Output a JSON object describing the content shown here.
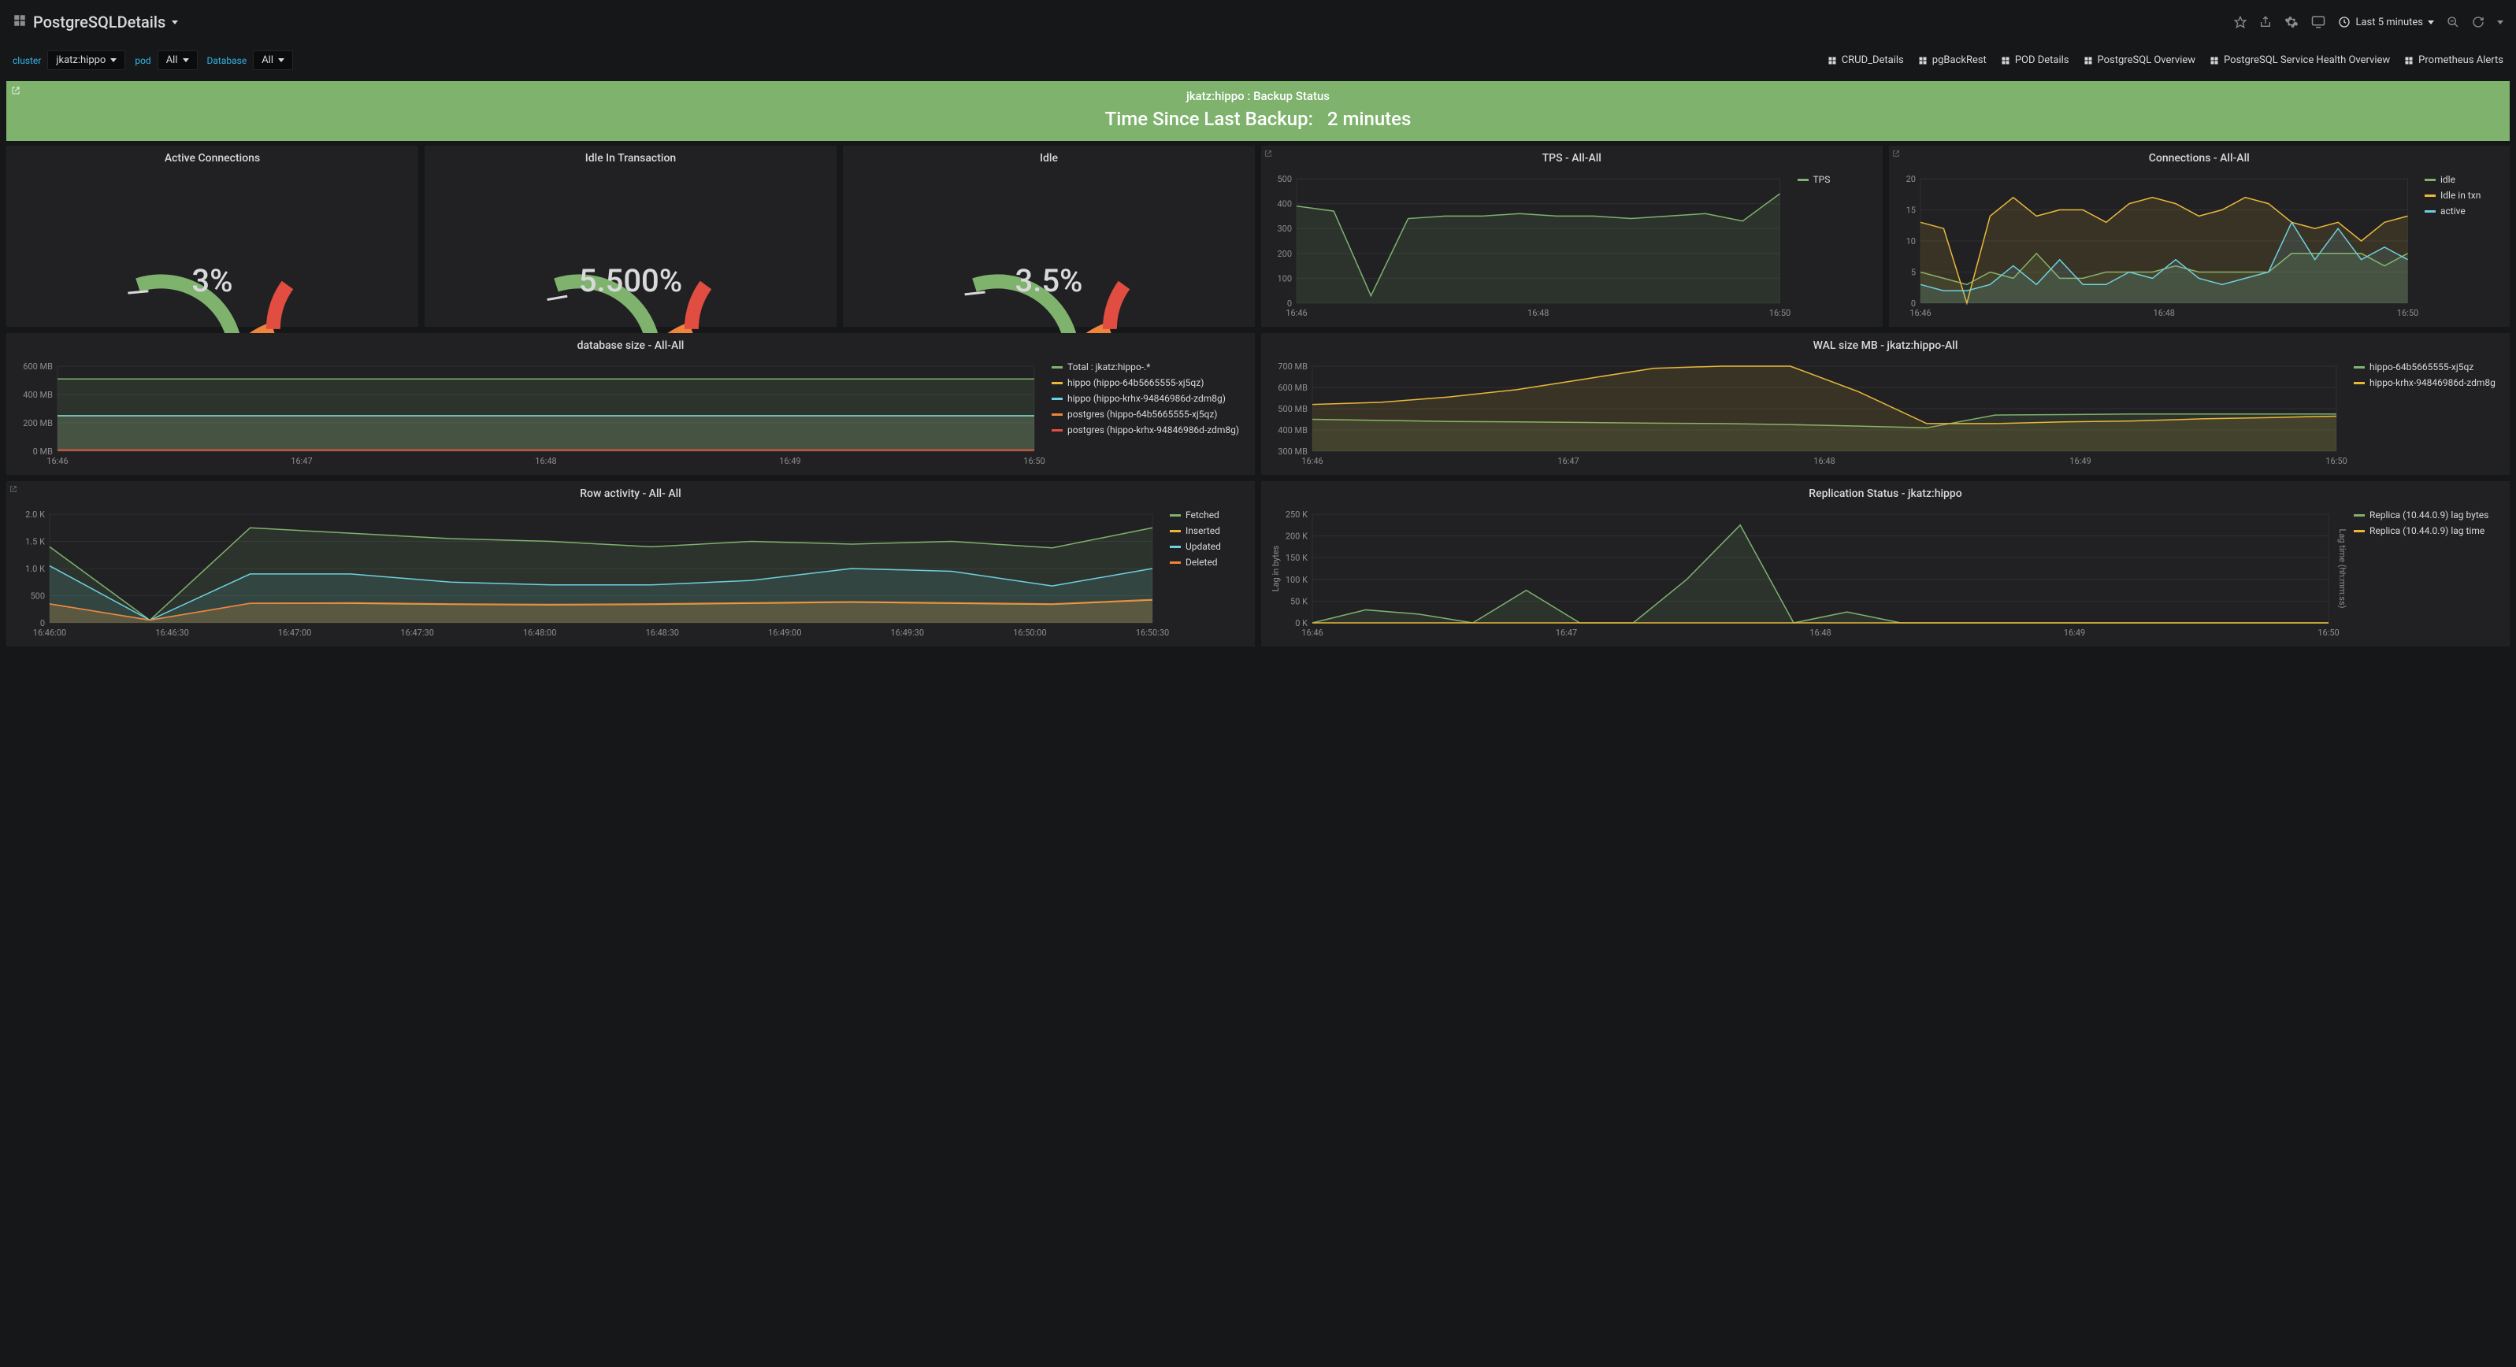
{
  "header": {
    "title": "PostgreSQLDetails",
    "time_range": "Last 5 minutes"
  },
  "variables": {
    "cluster": {
      "label": "cluster",
      "value": "jkatz:hippo"
    },
    "pod": {
      "label": "pod",
      "value": "All"
    },
    "database": {
      "label": "Database",
      "value": "All"
    }
  },
  "dash_links": [
    "CRUD_Details",
    "pgBackRest",
    "POD Details",
    "PostgreSQL Overview",
    "PostgreSQL Service Health Overview",
    "Prometheus Alerts"
  ],
  "banner": {
    "title": "jkatz:hippo : Backup Status",
    "label": "Time Since Last Backup:",
    "value": "2 minutes"
  },
  "gauges": [
    {
      "title": "Active Connections",
      "value": "3%",
      "fraction": 0.03
    },
    {
      "title": "Idle In Transaction",
      "value": "5.500%",
      "fraction": 0.055
    },
    {
      "title": "Idle",
      "value": "3.5%",
      "fraction": 0.035
    }
  ],
  "colors": {
    "green": "#7eb26d",
    "yellow": "#eab839",
    "cyan": "#6ed0e0",
    "orange": "#ef843c",
    "red": "#e24d42",
    "bg_panel": "#212124",
    "grid": "#2f2f32",
    "axis": "#8e8e8e"
  },
  "tps": {
    "title": "TPS - All-All",
    "ylim": [
      0,
      500
    ],
    "ystep": 100,
    "xlabels": [
      "16:46",
      "16:48",
      "16:50"
    ],
    "series": [
      {
        "name": "TPS",
        "color": "#7eb26d",
        "points": [
          390,
          370,
          30,
          340,
          350,
          350,
          360,
          350,
          350,
          340,
          350,
          360,
          330,
          440
        ]
      }
    ]
  },
  "connections": {
    "title": "Connections - All-All",
    "ylim": [
      0,
      20
    ],
    "ystep": 5,
    "xlabels": [
      "16:46",
      "16:48",
      "16:50"
    ],
    "series": [
      {
        "name": "idle",
        "color": "#7eb26d",
        "points": [
          5,
          4,
          3,
          5,
          4,
          8,
          4,
          4,
          5,
          5,
          5,
          6,
          5,
          5,
          5,
          5,
          8,
          8,
          8,
          8,
          6,
          8
        ]
      },
      {
        "name": "Idle in txn",
        "color": "#eab839",
        "points": [
          13,
          12,
          0,
          14,
          17,
          14,
          15,
          15,
          13,
          16,
          17,
          16,
          14,
          15,
          17,
          16,
          13,
          12,
          13,
          10,
          13,
          14
        ]
      },
      {
        "name": "active",
        "color": "#6ed0e0",
        "points": [
          3,
          2,
          2,
          3,
          6,
          3,
          7,
          3,
          3,
          5,
          4,
          7,
          4,
          3,
          4,
          5,
          13,
          7,
          12,
          7,
          9,
          7
        ]
      }
    ]
  },
  "dbsize": {
    "title": "database size - All-All",
    "ylim": [
      0,
      600
    ],
    "ystep": 200,
    "yunit": " MB",
    "xlabels": [
      "16:46",
      "16:47",
      "16:48",
      "16:49",
      "16:50"
    ],
    "series": [
      {
        "name": "Total : jkatz:hippo-.*",
        "color": "#7eb26d",
        "points": [
          510,
          510,
          510,
          510,
          510,
          510,
          510,
          510,
          510,
          510
        ]
      },
      {
        "name": "hippo (hippo-64b5665555-xj5qz)",
        "color": "#eab839",
        "points": [
          250,
          250,
          250,
          250,
          250,
          250,
          250,
          250,
          250,
          250
        ]
      },
      {
        "name": "hippo (hippo-krhx-94846986d-zdm8g)",
        "color": "#6ed0e0",
        "points": [
          250,
          250,
          250,
          250,
          250,
          250,
          250,
          250,
          250,
          250
        ]
      },
      {
        "name": "postgres (hippo-64b5665555-xj5qz)",
        "color": "#ef843c",
        "points": [
          8,
          8,
          8,
          8,
          8,
          8,
          8,
          8,
          8,
          8
        ]
      },
      {
        "name": "postgres (hippo-krhx-94846986d-zdm8g)",
        "color": "#e24d42",
        "points": [
          8,
          8,
          8,
          8,
          8,
          8,
          8,
          8,
          8,
          8
        ]
      }
    ]
  },
  "walsize": {
    "title": "WAL size MB - jkatz:hippo-All",
    "ylim": [
      300,
      700
    ],
    "ystep": 100,
    "yunit": " MB",
    "xlabels": [
      "16:46",
      "16:47",
      "16:48",
      "16:49",
      "16:50"
    ],
    "series": [
      {
        "name": "hippo-64b5665555-xj5qz",
        "color": "#7eb26d",
        "points": [
          450,
          445,
          440,
          438,
          435,
          432,
          430,
          425,
          418,
          410,
          470,
          472,
          475,
          475,
          475,
          475
        ]
      },
      {
        "name": "hippo-krhx-94846986d-zdm8g",
        "color": "#eab839",
        "points": [
          520,
          530,
          555,
          590,
          640,
          690,
          700,
          700,
          580,
          430,
          430,
          438,
          442,
          452,
          458,
          465
        ]
      }
    ]
  },
  "rowactivity": {
    "title": "Row activity - All- All",
    "ylim": [
      0,
      2000
    ],
    "ystep": 500,
    "yunit_labels": [
      "0",
      "500",
      "1.0 K",
      "1.5 K",
      "2.0 K"
    ],
    "xlabels": [
      "16:46:00",
      "16:46:30",
      "16:47:00",
      "16:47:30",
      "16:48:00",
      "16:48:30",
      "16:49:00",
      "16:49:30",
      "16:50:00",
      "16:50:30"
    ],
    "series": [
      {
        "name": "Fetched",
        "color": "#7eb26d",
        "points": [
          1400,
          50,
          1750,
          1650,
          1550,
          1500,
          1400,
          1500,
          1450,
          1500,
          1380,
          1750
        ]
      },
      {
        "name": "Inserted",
        "color": "#eab839",
        "points": [
          350,
          50,
          360,
          360,
          340,
          330,
          340,
          360,
          380,
          360,
          340,
          420
        ]
      },
      {
        "name": "Updated",
        "color": "#6ed0e0",
        "points": [
          1050,
          50,
          900,
          900,
          750,
          700,
          700,
          780,
          1000,
          950,
          680,
          1000
        ]
      },
      {
        "name": "Deleted",
        "color": "#ef843c",
        "points": [
          350,
          50,
          360,
          370,
          350,
          340,
          350,
          370,
          390,
          370,
          350,
          430
        ]
      }
    ]
  },
  "replication": {
    "title": "Replication Status - jkatz:hippo",
    "ylim": [
      0,
      250
    ],
    "ystep": 50,
    "yunit": " K",
    "ylabel_left": "Lag in bytes",
    "ylabel_right": "Lag time (hh:mm:ss)",
    "xlabels": [
      "16:46",
      "16:47",
      "16:48",
      "16:49",
      "16:50"
    ],
    "series": [
      {
        "name": "Replica (10.44.0.9) lag bytes",
        "color": "#7eb26d",
        "points": [
          0,
          30,
          20,
          0,
          75,
          0,
          0,
          100,
          225,
          0,
          25,
          0,
          0,
          0,
          0,
          0,
          0,
          0,
          0,
          0
        ]
      },
      {
        "name": "Replica (10.44.0.9) lag time",
        "color": "#eab839",
        "points": [
          0,
          0,
          0,
          0,
          0,
          0,
          0,
          0,
          0,
          0,
          0,
          0,
          0,
          0,
          0,
          0,
          0,
          0,
          0,
          0
        ]
      }
    ]
  }
}
